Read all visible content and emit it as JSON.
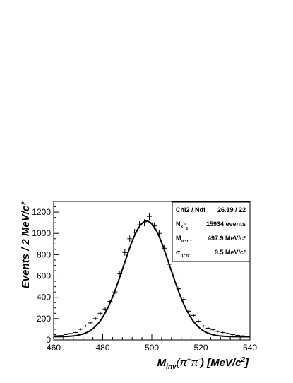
{
  "chart_data": {
    "type": "scatter",
    "title": "",
    "xlim": [
      460,
      540
    ],
    "ylim": [
      0,
      1300
    ],
    "x_ticks": [
      460,
      480,
      500,
      520,
      540
    ],
    "y_ticks": [
      0,
      200,
      400,
      600,
      800,
      1000,
      1200
    ],
    "x_tick_labels": [
      "460",
      "480",
      "500",
      "520",
      "540"
    ],
    "y_tick_labels": [
      "0",
      "200",
      "400",
      "600",
      "800",
      "1000",
      "1200"
    ],
    "xlabel": {
      "main": "M",
      "sub": "inv",
      "mid": "(π",
      "sup1": "+",
      "mid2": "π",
      "sup2": "-",
      "end": ") [MeV/c",
      "sup3": "2",
      "close": "]"
    },
    "ylabel": "Events / 2 MeV/c²",
    "grid": false,
    "legend_position": "top-right",
    "stats_box": {
      "rows": [
        {
          "label": "Chi2 / Ndf",
          "value": "26.19 / 22"
        },
        {
          "label": "N",
          "label_sub": "K",
          "label_sub_sup": "0",
          "label_sub_sub": "S",
          "value": "15934 events"
        },
        {
          "label": "M",
          "label_sub": "π⁺π⁻",
          "value": "497.9 MeV/c²"
        },
        {
          "label": "σ",
          "label_sub": "π⁺π⁻",
          "value": "9.5 MeV/c²"
        }
      ]
    },
    "series": [
      {
        "kind": "data_points_with_error_bars",
        "x": [
          461,
          463,
          465,
          467,
          469,
          471,
          473,
          475,
          477,
          479,
          481,
          483,
          485,
          487,
          489,
          491,
          493,
          495,
          497,
          499,
          501,
          503,
          505,
          507,
          509,
          511,
          513,
          515,
          517,
          519,
          521,
          523,
          525,
          527,
          529,
          531,
          533,
          535,
          537,
          539
        ],
        "y": [
          40,
          42,
          50,
          60,
          70,
          100,
          130,
          160,
          200,
          250,
          290,
          360,
          450,
          620,
          820,
          950,
          1010,
          1080,
          1100,
          1160,
          1070,
          1000,
          860,
          710,
          600,
          480,
          380,
          270,
          230,
          175,
          130,
          110,
          95,
          80,
          70,
          60,
          50,
          42,
          38,
          32
        ]
      },
      {
        "kind": "fit_curve",
        "function": "gaussian_plus_background",
        "mean": 497.9,
        "sigma": 9.5,
        "amplitude": 1085,
        "background": 30
      }
    ]
  }
}
